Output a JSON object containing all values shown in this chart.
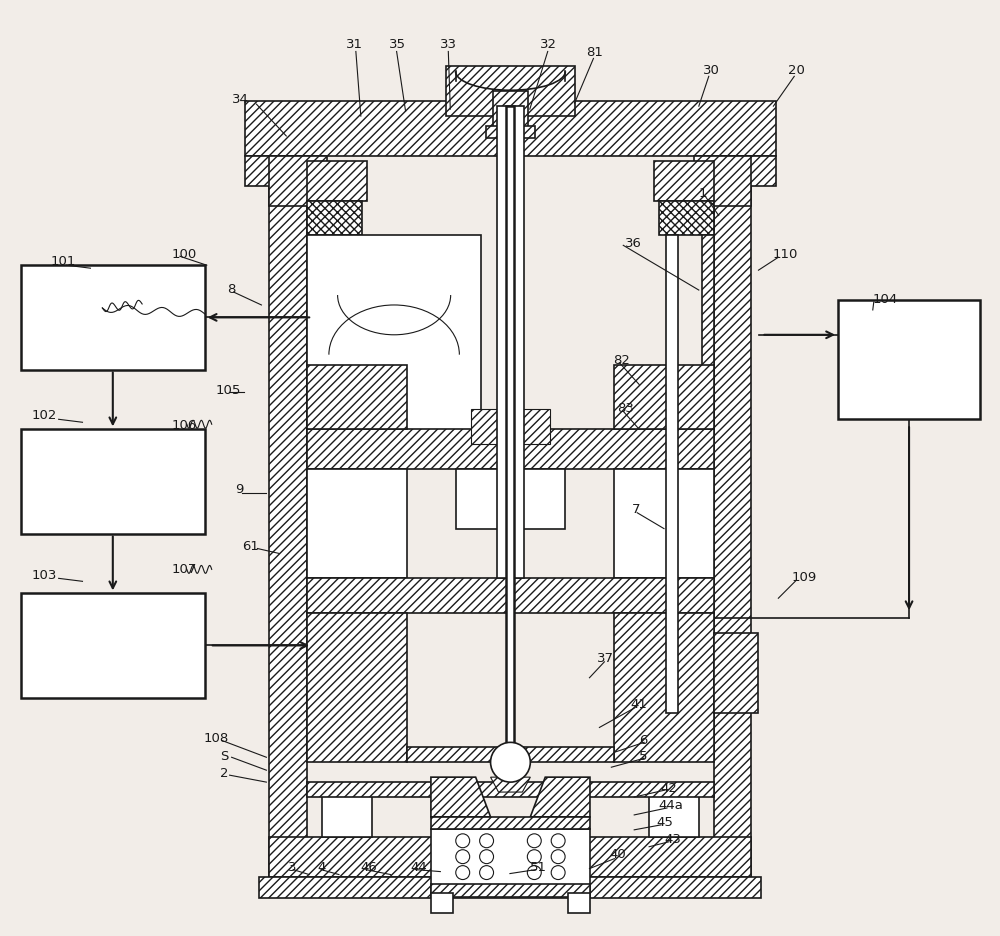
{
  "bg_color": "#f2ede8",
  "line_color": "#1a1a1a",
  "lw_thin": 0.8,
  "lw_med": 1.2,
  "lw_thick": 1.8,
  "label_fontsize": 9.5,
  "figw": 10.0,
  "figh": 9.37,
  "dpi": 100
}
